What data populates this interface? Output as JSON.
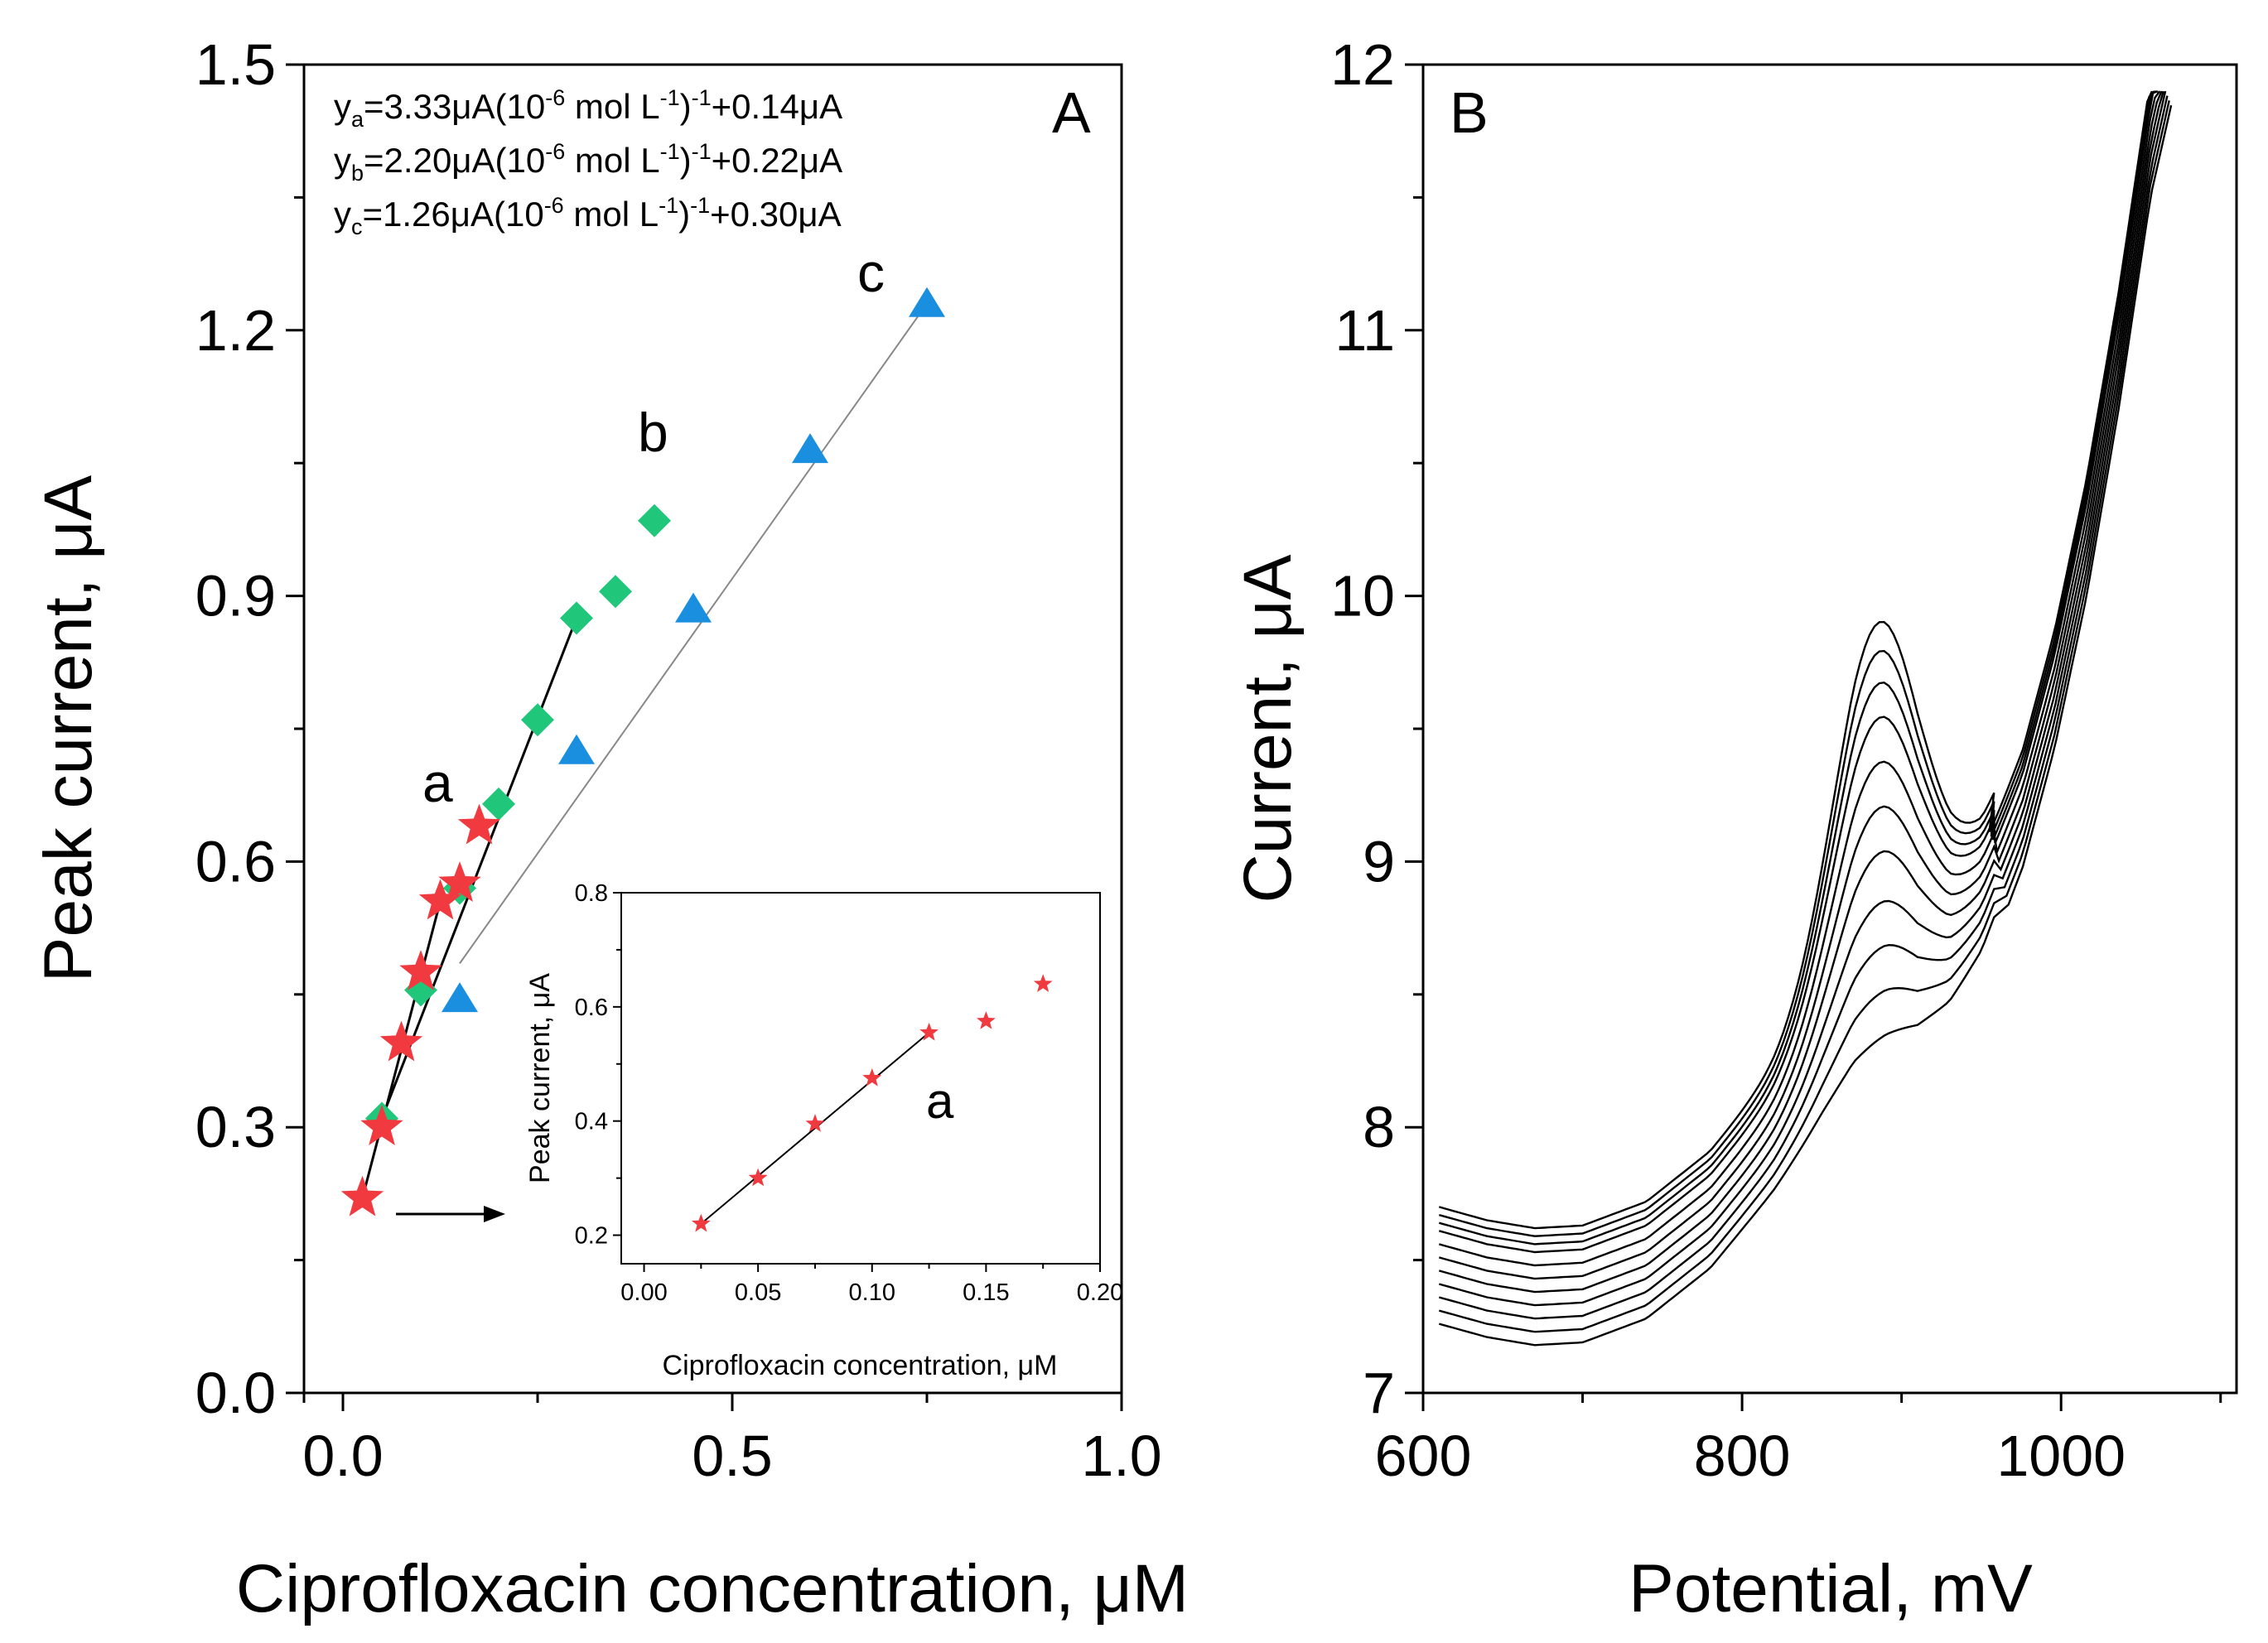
{
  "chart_data": [
    {
      "panel": "A",
      "type": "scatter",
      "xlabel": "Ciprofloxacin concentration, μM",
      "ylabel": "Peak current, μA",
      "xlim": [
        -0.05,
        1.0
      ],
      "ylim": [
        0.0,
        1.5
      ],
      "xticks": [
        "0.0",
        "0.5",
        "1.0"
      ],
      "yticks": [
        "0.0",
        "0.3",
        "0.6",
        "0.9",
        "1.2",
        "1.5"
      ],
      "panel_label": "A",
      "equations": [
        {
          "y": "y",
          "sub": "a",
          "body": "=3.33μA(10",
          "exp1": "-6",
          "mid": " mol L",
          "exp2": "-1",
          "close": ")",
          "exp3": "-1",
          "tail": "+0.14μA"
        },
        {
          "y": "y",
          "sub": "b",
          "body": "=2.20μA(10",
          "exp1": "-6",
          "mid": " mol L",
          "exp2": "-1",
          "close": ")",
          "exp3": "-1",
          "tail": "+0.22μA"
        },
        {
          "y": "y",
          "sub": "c",
          "body": "=1.26μA(10",
          "exp1": "-6",
          "mid": " mol L",
          "exp2": "-1",
          "close": ")",
          "exp3": "-1",
          "tail": "+0.30μA"
        }
      ],
      "series": [
        {
          "name": "a",
          "marker": "star",
          "color": "#f03a3f",
          "x": [
            0.025,
            0.05,
            0.075,
            0.1,
            0.125,
            0.15,
            0.175
          ],
          "y": [
            0.22,
            0.3,
            0.395,
            0.475,
            0.555,
            0.575,
            0.64
          ],
          "fit": [
            [
              0.025,
              0.22
            ],
            [
              0.125,
              0.555
            ]
          ],
          "fit_color": "#000000"
        },
        {
          "name": "b",
          "marker": "diamond",
          "color": "#20c77b",
          "x": [
            0.05,
            0.1,
            0.15,
            0.2,
            0.25,
            0.3,
            0.35,
            0.4
          ],
          "y": [
            0.31,
            0.455,
            0.57,
            0.665,
            0.76,
            0.875,
            0.905,
            0.985
          ],
          "fit": [
            [
              0.05,
              0.31
            ],
            [
              0.3,
              0.875
            ]
          ],
          "fit_color": "#000000"
        },
        {
          "name": "c",
          "marker": "triangle",
          "color": "#1a8fe0",
          "x": [
            0.15,
            0.3,
            0.45,
            0.6,
            0.75
          ],
          "y": [
            0.445,
            0.725,
            0.885,
            1.065,
            1.23
          ],
          "fit": [
            [
              0.15,
              0.485
            ],
            [
              0.75,
              1.23
            ]
          ],
          "fit_color": "#888888"
        }
      ],
      "inset": {
        "xlabel": "Ciprofloxacin concentration, μM",
        "ylabel": "Peak current, μA",
        "xlim": [
          -0.01,
          0.2
        ],
        "ylim": [
          0.15,
          0.8
        ],
        "xticks": [
          "0.00",
          "0.05",
          "0.10",
          "0.15",
          "0.20"
        ],
        "yticks": [
          "0.2",
          "0.4",
          "0.6",
          "0.8"
        ],
        "label": "a",
        "x": [
          0.025,
          0.05,
          0.075,
          0.1,
          0.125,
          0.15,
          0.175
        ],
        "y": [
          0.22,
          0.3,
          0.395,
          0.475,
          0.555,
          0.575,
          0.64
        ],
        "fit": [
          [
            0.025,
            0.22
          ],
          [
            0.125,
            0.555
          ]
        ]
      }
    },
    {
      "panel": "B",
      "type": "line",
      "xlabel": "Potential, mV",
      "ylabel": "Current, μA",
      "xlim": [
        600,
        1110
      ],
      "ylim": [
        7.0,
        12.0
      ],
      "xticks": [
        "600",
        "800",
        "1000"
      ],
      "yticks": [
        "7",
        "8",
        "9",
        "10",
        "11",
        "12"
      ],
      "panel_label": "B",
      "curve_count": 11,
      "potential_mV": [
        610,
        640,
        670,
        700,
        740,
        780,
        820,
        850,
        870,
        890,
        910,
        930,
        950,
        970,
        990,
        1010,
        1030,
        1050,
        1065
      ],
      "base_current_uA": [
        7.26,
        7.21,
        7.18,
        7.19,
        7.28,
        7.47,
        7.76,
        8.01,
        8.16,
        8.25,
        8.32,
        8.45,
        8.66,
        8.98,
        9.43,
        10.0,
        10.7,
        11.5,
        11.9
      ],
      "peak_center_mV": 885,
      "peak_width_mV": 38,
      "curve_offsets_uA": [
        0,
        0.05,
        0.1,
        0.15,
        0.2,
        0.25,
        0.3,
        0.35,
        0.38,
        0.41,
        0.44
      ],
      "peak_heights_uA": [
        0.1,
        0.22,
        0.34,
        0.46,
        0.6,
        0.72,
        0.84,
        0.96,
        1.06,
        1.15,
        1.23
      ]
    }
  ]
}
